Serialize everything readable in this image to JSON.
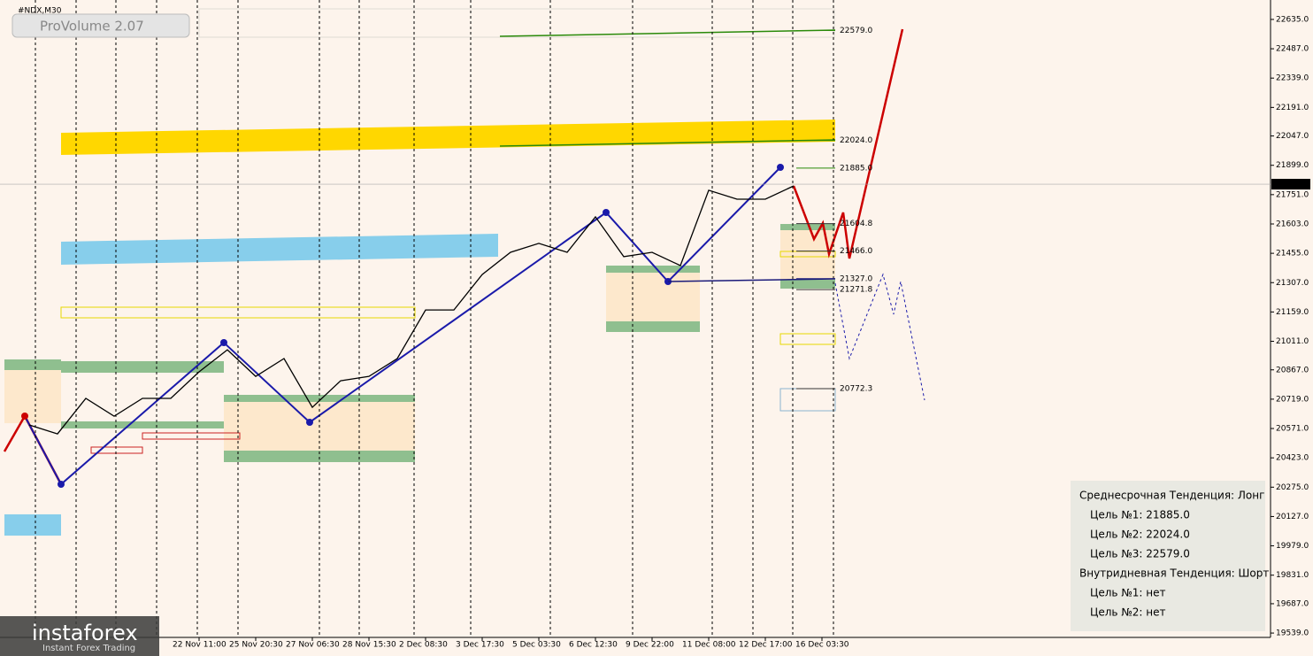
{
  "chart_data": {
    "type": "line",
    "title": "#NDX,M30",
    "color": "#000000",
    "categories": [
      null,
      null,
      null,
      null,
      null,
      null,
      "22 Nov 11:00",
      null,
      "25 Nov 20:30",
      null,
      "27 Nov 06:30",
      null,
      "28 Nov 15:30",
      null,
      "2 Dec 08:30",
      null,
      "3 Dec 17:30",
      null,
      "5 Dec 03:30",
      null,
      "6 Dec 12:30",
      null,
      "9 Dec 22:00",
      null,
      "11 Dec 08:00",
      null,
      "12 Dec 17:00",
      null,
      "16 Dec 03:30"
    ],
    "values": [
      20589,
      20544,
      20723,
      20633,
      20723,
      20723,
      20857,
      20968,
      20834,
      20924,
      20678,
      20812,
      20834,
      20924,
      21169,
      21169,
      21348,
      21460,
      21505,
      21460,
      21639,
      21438,
      21460,
      21393,
      21773,
      21728,
      21728,
      21795,
      null
    ],
    "ylim": [
      19517,
      22733
    ],
    "yticks": [
      {
        "value": 22635,
        "label": "22635.0"
      },
      {
        "value": 22487,
        "label": "22487.0"
      },
      {
        "value": 22339,
        "label": "22339.0"
      },
      {
        "value": 22191,
        "label": "22191.0"
      },
      {
        "value": 22047,
        "label": "22047.0"
      },
      {
        "value": 21899,
        "label": "21899.0"
      },
      {
        "value": 21751,
        "label": "21751.0"
      },
      {
        "value": 21603,
        "label": "21603.0"
      },
      {
        "value": 21455,
        "label": "21455.0"
      },
      {
        "value": 21307,
        "label": "21307.0"
      },
      {
        "value": 21159,
        "label": "21159.0"
      },
      {
        "value": 21011,
        "label": "21011.0"
      },
      {
        "value": 20867,
        "label": "20867.0"
      },
      {
        "value": 20719,
        "label": "20719.0"
      },
      {
        "value": 20571,
        "label": "20571.0"
      },
      {
        "value": 20423,
        "label": "20423.0"
      },
      {
        "value": 20275,
        "label": "20275.0"
      },
      {
        "value": 20127,
        "label": "20127.0"
      },
      {
        "value": 19979,
        "label": "19979.0"
      },
      {
        "value": 19831,
        "label": "19831.0"
      },
      {
        "value": 19687,
        "label": "19687.0"
      },
      {
        "value": 19539,
        "label": "19539.0"
      }
    ],
    "last_price": 21803.7,
    "levels": [
      {
        "value": 22579,
        "label": "22579.0",
        "color": "#2a8a0a"
      },
      {
        "value": 22024,
        "label": "22024.0",
        "color": "#2a8a0a"
      },
      {
        "value": 21885,
        "label": "21885.0",
        "color": "#2a8a0a"
      },
      {
        "value": 21604.8,
        "label": "21604.8",
        "color": "#333333"
      },
      {
        "value": 21466,
        "label": "21466.0",
        "color": "#333333"
      },
      {
        "value": 21327,
        "label": "21327.0",
        "color": "#1a1a7a"
      },
      {
        "value": 21271.8,
        "label": "21271.8",
        "color": "#333333"
      },
      {
        "value": 20772.3,
        "label": "20772.3",
        "color": "#333333"
      }
    ]
  },
  "indicator": "ProVolume 2.07",
  "logo": {
    "name": "instaforex",
    "tagline": "Instant Forex Trading"
  },
  "info_panel": [
    "Среднесрочная Тенденция: Лонг",
    "Цель №1: 21885.0",
    "Цель №2: 22024.0",
    "Цель №3: 22579.0",
    "Внутридневная Тенденция: Шорт",
    "Цель №1: нет",
    "Цель №2: нет"
  ]
}
